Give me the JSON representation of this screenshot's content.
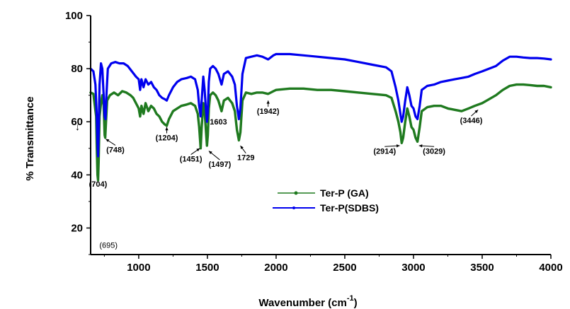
{
  "chart_data": {
    "type": "line",
    "title": "",
    "xlabel": "Wavenumber (cm",
    "xlabel_sup": "-1",
    "xlabel_tail": ")",
    "ylabel": "% Transmittance",
    "xlim": [
      650,
      4000
    ],
    "ylim": [
      10,
      100
    ],
    "x_ticks": [
      1000,
      1500,
      2000,
      2500,
      3000,
      3500,
      4000
    ],
    "y_ticks": [
      20,
      40,
      60,
      80,
      100
    ],
    "grid": false,
    "legend_position": "center",
    "series": [
      {
        "name": "Ter-P (GA)",
        "color": "#1f7a1f",
        "points": [
          [
            650,
            71
          ],
          [
            670,
            70.5
          ],
          [
            690,
            62
          ],
          [
            695,
            50
          ],
          [
            700,
            40
          ],
          [
            704,
            38
          ],
          [
            708,
            45
          ],
          [
            715,
            62
          ],
          [
            725,
            67
          ],
          [
            735,
            70
          ],
          [
            745,
            66
          ],
          [
            752,
            55
          ],
          [
            756,
            54
          ],
          [
            762,
            60
          ],
          [
            770,
            68
          ],
          [
            790,
            70
          ],
          [
            820,
            71
          ],
          [
            850,
            70
          ],
          [
            880,
            71.5
          ],
          [
            910,
            71
          ],
          [
            940,
            70
          ],
          [
            960,
            69
          ],
          [
            980,
            67
          ],
          [
            1000,
            65
          ],
          [
            1010,
            62
          ],
          [
            1020,
            66
          ],
          [
            1035,
            63
          ],
          [
            1050,
            67
          ],
          [
            1070,
            64
          ],
          [
            1090,
            66
          ],
          [
            1110,
            65
          ],
          [
            1130,
            63
          ],
          [
            1150,
            62
          ],
          [
            1170,
            60
          ],
          [
            1190,
            59
          ],
          [
            1204,
            58.5
          ],
          [
            1220,
            61
          ],
          [
            1250,
            64
          ],
          [
            1280,
            65
          ],
          [
            1310,
            66
          ],
          [
            1350,
            66.5
          ],
          [
            1380,
            67
          ],
          [
            1410,
            66
          ],
          [
            1430,
            63
          ],
          [
            1440,
            58
          ],
          [
            1451,
            50
          ],
          [
            1458,
            58
          ],
          [
            1470,
            67
          ],
          [
            1480,
            64
          ],
          [
            1490,
            56
          ],
          [
            1497,
            51
          ],
          [
            1503,
            55
          ],
          [
            1510,
            65
          ],
          [
            1520,
            70
          ],
          [
            1540,
            71
          ],
          [
            1560,
            70
          ],
          [
            1580,
            68
          ],
          [
            1603,
            64
          ],
          [
            1620,
            68
          ],
          [
            1650,
            69
          ],
          [
            1680,
            67
          ],
          [
            1700,
            64
          ],
          [
            1715,
            57
          ],
          [
            1729,
            53
          ],
          [
            1740,
            56
          ],
          [
            1755,
            68
          ],
          [
            1780,
            71
          ],
          [
            1820,
            70.5
          ],
          [
            1860,
            71
          ],
          [
            1900,
            71
          ],
          [
            1942,
            70.5
          ],
          [
            1980,
            71.5
          ],
          [
            2000,
            72
          ],
          [
            2100,
            72.5
          ],
          [
            2200,
            72.5
          ],
          [
            2300,
            72
          ],
          [
            2400,
            72
          ],
          [
            2500,
            71.5
          ],
          [
            2600,
            71
          ],
          [
            2700,
            70.5
          ],
          [
            2800,
            70
          ],
          [
            2840,
            69
          ],
          [
            2870,
            64
          ],
          [
            2890,
            60
          ],
          [
            2905,
            56
          ],
          [
            2914,
            52
          ],
          [
            2925,
            54
          ],
          [
            2940,
            60
          ],
          [
            2955,
            65
          ],
          [
            2970,
            62
          ],
          [
            2985,
            58
          ],
          [
            3000,
            57
          ],
          [
            3015,
            54
          ],
          [
            3029,
            52.5
          ],
          [
            3045,
            58
          ],
          [
            3060,
            64
          ],
          [
            3100,
            65.5
          ],
          [
            3150,
            66
          ],
          [
            3200,
            66
          ],
          [
            3250,
            65
          ],
          [
            3300,
            64.5
          ],
          [
            3350,
            64
          ],
          [
            3400,
            65
          ],
          [
            3446,
            66
          ],
          [
            3500,
            67
          ],
          [
            3550,
            68.5
          ],
          [
            3600,
            70
          ],
          [
            3650,
            72
          ],
          [
            3700,
            73.5
          ],
          [
            3750,
            74
          ],
          [
            3800,
            74
          ],
          [
            3850,
            73.8
          ],
          [
            3900,
            73.5
          ],
          [
            3950,
            73.5
          ],
          [
            4000,
            73
          ]
        ]
      },
      {
        "name": "Ter-P(SDBS)",
        "color": "#0000ee",
        "points": [
          [
            650,
            80
          ],
          [
            670,
            79
          ],
          [
            685,
            74
          ],
          [
            695,
            62
          ],
          [
            700,
            52
          ],
          [
            704,
            47
          ],
          [
            708,
            56
          ],
          [
            715,
            74
          ],
          [
            725,
            82
          ],
          [
            735,
            80
          ],
          [
            745,
            70
          ],
          [
            752,
            62
          ],
          [
            758,
            61
          ],
          [
            765,
            70
          ],
          [
            775,
            80
          ],
          [
            800,
            82
          ],
          [
            830,
            82.5
          ],
          [
            860,
            82
          ],
          [
            890,
            82
          ],
          [
            920,
            81
          ],
          [
            950,
            79
          ],
          [
            980,
            77
          ],
          [
            1000,
            76
          ],
          [
            1010,
            72
          ],
          [
            1020,
            76
          ],
          [
            1035,
            73
          ],
          [
            1050,
            76
          ],
          [
            1070,
            74
          ],
          [
            1090,
            75
          ],
          [
            1110,
            73
          ],
          [
            1130,
            72
          ],
          [
            1150,
            70
          ],
          [
            1170,
            69
          ],
          [
            1190,
            68.5
          ],
          [
            1204,
            68
          ],
          [
            1220,
            70
          ],
          [
            1250,
            73
          ],
          [
            1280,
            75
          ],
          [
            1310,
            76
          ],
          [
            1350,
            76.5
          ],
          [
            1380,
            77
          ],
          [
            1410,
            76
          ],
          [
            1430,
            72
          ],
          [
            1440,
            66
          ],
          [
            1451,
            62
          ],
          [
            1458,
            68
          ],
          [
            1470,
            77
          ],
          [
            1480,
            72
          ],
          [
            1490,
            64
          ],
          [
            1497,
            60
          ],
          [
            1503,
            64
          ],
          [
            1510,
            75
          ],
          [
            1520,
            80
          ],
          [
            1540,
            81
          ],
          [
            1560,
            80
          ],
          [
            1580,
            78
          ],
          [
            1603,
            74
          ],
          [
            1620,
            78
          ],
          [
            1650,
            79
          ],
          [
            1680,
            77
          ],
          [
            1700,
            74
          ],
          [
            1715,
            66
          ],
          [
            1729,
            61
          ],
          [
            1740,
            65
          ],
          [
            1755,
            78
          ],
          [
            1780,
            84
          ],
          [
            1820,
            84.5
          ],
          [
            1860,
            85
          ],
          [
            1900,
            84.5
          ],
          [
            1942,
            83.5
          ],
          [
            1980,
            85
          ],
          [
            2000,
            85.5
          ],
          [
            2100,
            85.5
          ],
          [
            2200,
            85
          ],
          [
            2300,
            84.5
          ],
          [
            2400,
            84
          ],
          [
            2500,
            83.5
          ],
          [
            2600,
            82.5
          ],
          [
            2700,
            81.5
          ],
          [
            2800,
            80.5
          ],
          [
            2840,
            79
          ],
          [
            2870,
            73
          ],
          [
            2890,
            68
          ],
          [
            2905,
            63
          ],
          [
            2914,
            60
          ],
          [
            2925,
            62
          ],
          [
            2940,
            68
          ],
          [
            2955,
            73
          ],
          [
            2970,
            70
          ],
          [
            2985,
            66
          ],
          [
            3000,
            65
          ],
          [
            3015,
            62
          ],
          [
            3029,
            61
          ],
          [
            3045,
            66
          ],
          [
            3060,
            72
          ],
          [
            3100,
            73.5
          ],
          [
            3150,
            74
          ],
          [
            3200,
            75
          ],
          [
            3250,
            75.5
          ],
          [
            3300,
            76
          ],
          [
            3350,
            76.5
          ],
          [
            3400,
            77
          ],
          [
            3446,
            78
          ],
          [
            3500,
            79
          ],
          [
            3550,
            80
          ],
          [
            3600,
            81
          ],
          [
            3650,
            83
          ],
          [
            3700,
            84.5
          ],
          [
            3750,
            84.5
          ],
          [
            3800,
            84.2
          ],
          [
            3850,
            84
          ],
          [
            3900,
            84
          ],
          [
            3950,
            83.8
          ],
          [
            4000,
            83.5
          ]
        ]
      }
    ],
    "annotations": [
      {
        "text": "(704)",
        "x": 704,
        "y": 35.5,
        "style": "bold"
      },
      {
        "text": "(748)",
        "x": 830,
        "y": 48.5,
        "style": "bold",
        "arrow_to": [
          760,
          53.5
        ]
      },
      {
        "text": "(1204)",
        "x": 1204,
        "y": 53,
        "style": "bold",
        "arrow_to": [
          1204,
          58
        ]
      },
      {
        "text": "(1451)",
        "x": 1380,
        "y": 45,
        "style": "bold",
        "arrow_to": [
          1445,
          50
        ]
      },
      {
        "text": "1603",
        "x": 1580,
        "y": 59,
        "style": "bold"
      },
      {
        "text": "(1497)",
        "x": 1590,
        "y": 43,
        "style": "bold",
        "arrow_to": [
          1510,
          49
        ]
      },
      {
        "text": "1729",
        "x": 1780,
        "y": 45.5,
        "style": "bold",
        "arrow_to": [
          1740,
          51
        ]
      },
      {
        "text": "(1942)",
        "x": 1942,
        "y": 63,
        "style": "bold",
        "arrow_to": [
          1942,
          68
        ]
      },
      {
        "text": "(2914)",
        "x": 2790,
        "y": 48,
        "style": "bold",
        "arrow_to": [
          2900,
          51
        ]
      },
      {
        "text": "(3029)",
        "x": 3150,
        "y": 48,
        "style": "bold",
        "arrow_to": [
          3040,
          51
        ]
      },
      {
        "text": "(3446)",
        "x": 3420,
        "y": 59.5,
        "style": "bold",
        "arrow_to": [
          3470,
          64.5
        ]
      },
      {
        "text": "(695)",
        "x": 780,
        "y": 12.5,
        "style": "normal"
      }
    ]
  }
}
